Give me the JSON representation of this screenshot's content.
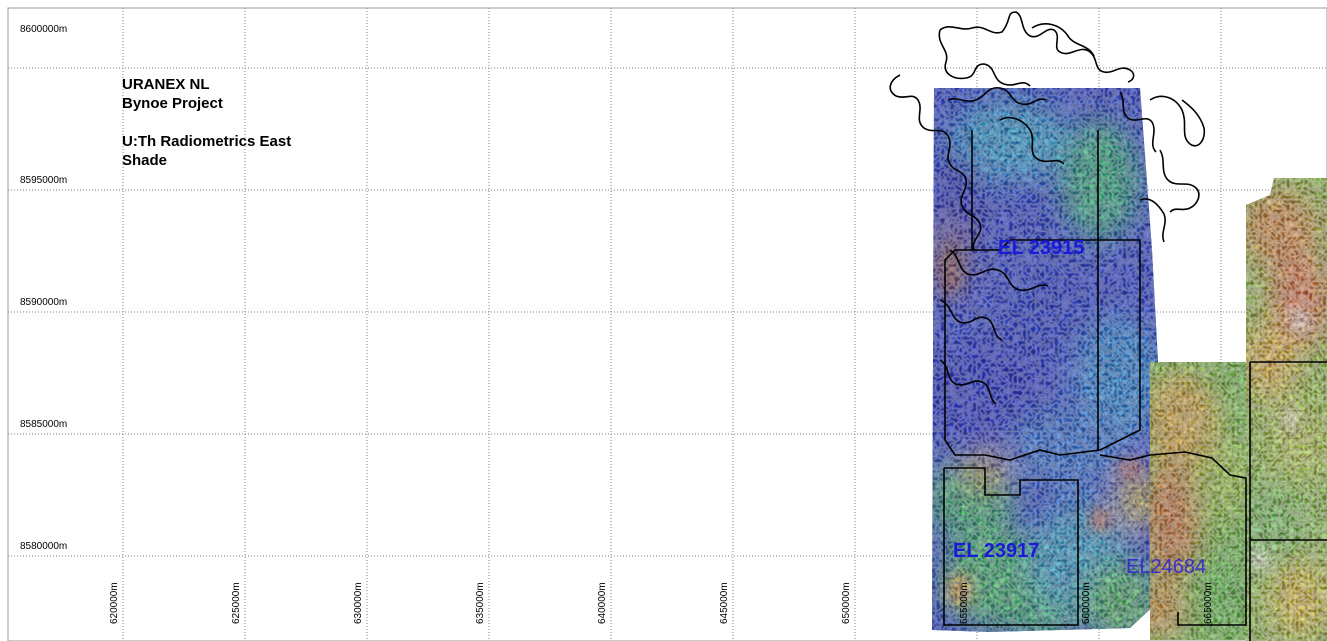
{
  "title": {
    "company": "URANEX NL",
    "project": "Bynoe Project",
    "map_name": "U:Th Radiometrics East",
    "map_style": "Shade"
  },
  "grid": {
    "northing_labels": [
      "8600000m",
      "8595000m",
      "8590000m",
      "8585000m",
      "8580000m"
    ],
    "easting_labels": [
      "620000m",
      "625000m",
      "630000m",
      "635000m",
      "640000m",
      "645000m",
      "650000m",
      "655000m",
      "660000m",
      "665000m"
    ]
  },
  "tenements": [
    {
      "id": "el-23915",
      "label": "EL 23915"
    },
    {
      "id": "el-23917",
      "label": "EL 23917"
    },
    {
      "id": "el-24684",
      "label": "EL24684"
    }
  ],
  "colors": {
    "low": "#2b2fc4",
    "mid_low": "#2e9bd6",
    "mid": "#3bbf5a",
    "mid_high": "#d6c83a",
    "high": "#c9743a",
    "peak": "#ffffff",
    "boundary": "#000000",
    "label": "#1a1ad9",
    "grid": "#808080"
  }
}
